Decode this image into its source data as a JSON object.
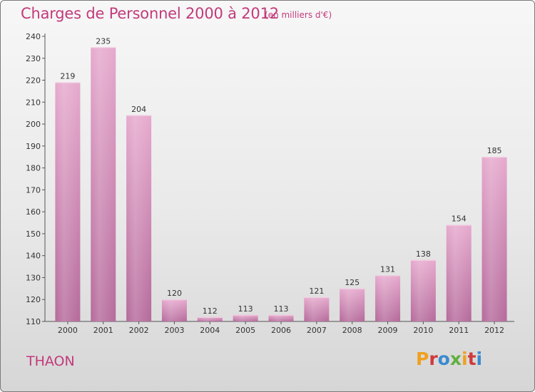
{
  "page": {
    "title": "Charges de Personnel 2000 à 2012",
    "subtitle": "(en milliers d'€)",
    "commune": "THAON",
    "logo": "Proxiti"
  },
  "colors": {
    "title": "#c23a7b",
    "bar_top": "#e3a3c9",
    "bar_bottom": "#b86d9e",
    "logo_letters": [
      "#f0a020",
      "#d03a3a",
      "#3a8ad0",
      "#60b040",
      "#f0a020",
      "#d03a3a",
      "#3a8ad0"
    ]
  },
  "chart_data": {
    "type": "bar",
    "title": "Charges de Personnel 2000 à 2012",
    "subtitle": "(en milliers d'€)",
    "categories": [
      "2000",
      "2001",
      "2002",
      "2003",
      "2004",
      "2005",
      "2006",
      "2007",
      "2008",
      "2009",
      "2010",
      "2011",
      "2012"
    ],
    "values": [
      219,
      235,
      204,
      120,
      112,
      113,
      113,
      121,
      125,
      131,
      138,
      154,
      185
    ],
    "data_labels": [
      "219",
      "235",
      "204",
      "120",
      "112",
      "113",
      "113",
      "121",
      "125",
      "131",
      "138",
      "154",
      "185"
    ],
    "ylim": [
      110,
      240
    ],
    "yticks": [
      110,
      120,
      130,
      140,
      150,
      160,
      170,
      180,
      190,
      200,
      210,
      220,
      230,
      240
    ],
    "grid": false,
    "legend": "none"
  }
}
